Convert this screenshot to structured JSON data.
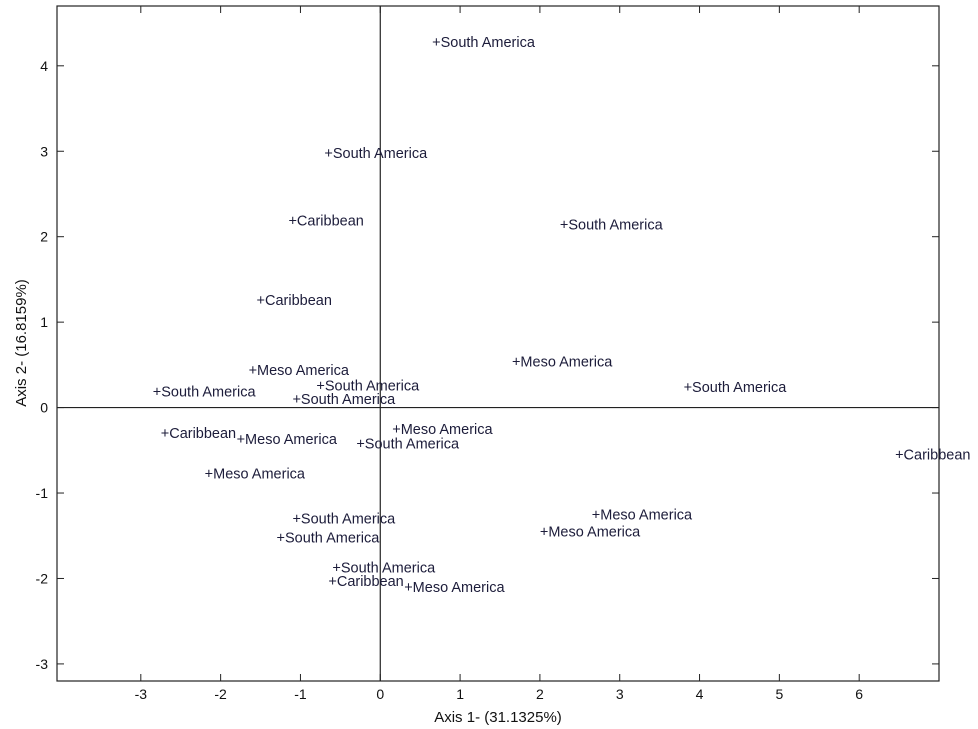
{
  "chart_data": {
    "type": "scatter",
    "xlabel": "Axis 1- (31.1325%)",
    "ylabel": "Axis 2- (16.8159%)",
    "xlim": [
      -4.05,
      7.0
    ],
    "ylim": [
      -3.2,
      4.7
    ],
    "x_ticks": [
      -3,
      -2,
      -1,
      0,
      1,
      2,
      3,
      4,
      5,
      6
    ],
    "y_ticks": [
      -3,
      -2,
      -1,
      0,
      1,
      2,
      3,
      4
    ],
    "grid": false,
    "reference_lines": {
      "x": 0,
      "y": 0
    },
    "marker": "+",
    "points": [
      {
        "label": "South America",
        "x": 0.65,
        "y": 4.28
      },
      {
        "label": "South America",
        "x": -0.7,
        "y": 2.98
      },
      {
        "label": "Caribbean",
        "x": -1.15,
        "y": 2.19
      },
      {
        "label": "South America",
        "x": 2.25,
        "y": 2.14
      },
      {
        "label": "Caribbean",
        "x": -1.55,
        "y": 1.26
      },
      {
        "label": "Meso America",
        "x": 1.65,
        "y": 0.54
      },
      {
        "label": "Meso America",
        "x": -1.65,
        "y": 0.44
      },
      {
        "label": "South America",
        "x": -0.8,
        "y": 0.26
      },
      {
        "label": "South America",
        "x": 3.8,
        "y": 0.24
      },
      {
        "label": "South America",
        "x": -2.85,
        "y": 0.19
      },
      {
        "label": "South America",
        "x": -1.1,
        "y": 0.1
      },
      {
        "label": "Meso America",
        "x": 0.15,
        "y": -0.25
      },
      {
        "label": "Caribbean",
        "x": -2.75,
        "y": -0.3
      },
      {
        "label": "Meso America",
        "x": -1.8,
        "y": -0.37
      },
      {
        "label": "South America",
        "x": -0.3,
        "y": -0.42
      },
      {
        "label": "Caribbean",
        "x": 6.45,
        "y": -0.55
      },
      {
        "label": "Meso America",
        "x": -2.2,
        "y": -0.77
      },
      {
        "label": "Meso America",
        "x": 2.65,
        "y": -1.25
      },
      {
        "label": "South America",
        "x": -1.1,
        "y": -1.3
      },
      {
        "label": "Meso America",
        "x": 2.0,
        "y": -1.45
      },
      {
        "label": "South America",
        "x": -1.3,
        "y": -1.52
      },
      {
        "label": "South America",
        "x": -0.6,
        "y": -1.87
      },
      {
        "label": "Caribbean",
        "x": -0.65,
        "y": -2.03
      },
      {
        "label": "Meso America",
        "x": 0.3,
        "y": -2.1
      }
    ]
  }
}
